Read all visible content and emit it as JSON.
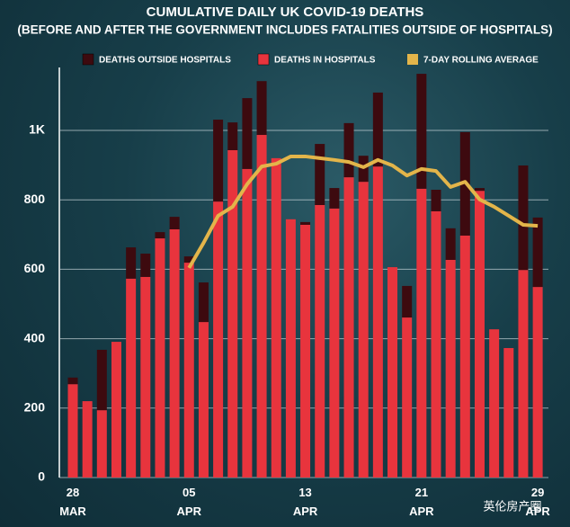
{
  "chart_data": {
    "type": "stacked_bar_line",
    "title": "CUMULATIVE DAILY UK COVID-19 DEATHS",
    "subtitle": "(BEFORE AND AFTER THE GOVERNMENT INCLUDES FATALITIES OUTSIDE OF HOSPITALS)",
    "watermark": "英伦房产圈",
    "categories": [
      "28\nMAR",
      null,
      null,
      null,
      null,
      null,
      null,
      null,
      "05\nAPR",
      null,
      null,
      null,
      null,
      null,
      null,
      null,
      "13\nAPR",
      null,
      null,
      null,
      null,
      null,
      null,
      null,
      "21\nAPR",
      null,
      null,
      null,
      null,
      null,
      null,
      null,
      "29\nAPR"
    ],
    "series": [
      {
        "name": "DEATHS OUTSIDE HOSPITALS",
        "color": "#3d0a0f",
        "stack": true,
        "values": [
          19,
          0,
          174,
          0,
          90,
          67,
          18,
          36,
          18,
          114,
          236,
          80,
          204,
          155,
          0,
          0,
          8,
          176,
          59,
          156,
          75,
          213,
          0,
          91,
          331,
          62,
          91,
          298,
          8,
          0,
          0,
          301,
          200
        ]
      },
      {
        "name": "DEATHS IN HOSPITALS",
        "color": "#e8343d",
        "stack": true,
        "values": [
          269,
          220,
          194,
          391,
          573,
          578,
          689,
          715,
          619,
          448,
          795,
          943,
          889,
          987,
          920,
          744,
          728,
          785,
          775,
          865,
          852,
          896,
          606,
          461,
          832,
          767,
          627,
          697,
          826,
          427,
          373,
          598,
          549
        ]
      },
      {
        "name": "7-DAY ROLLING AVERAGE",
        "color": "#e3b54a",
        "line": true,
        "values": [
          null,
          null,
          null,
          null,
          null,
          null,
          null,
          null,
          604,
          676,
          754,
          780,
          845,
          896,
          904,
          925,
          925,
          920,
          915,
          909,
          894,
          915,
          899,
          870,
          889,
          883,
          837,
          852,
          801,
          780,
          754,
          728,
          725
        ]
      }
    ],
    "ylim": [
      0,
      1200
    ],
    "yticks": [
      0,
      200,
      400,
      600,
      800,
      {
        "value": 1000,
        "label": "1K"
      }
    ],
    "grid": true
  }
}
